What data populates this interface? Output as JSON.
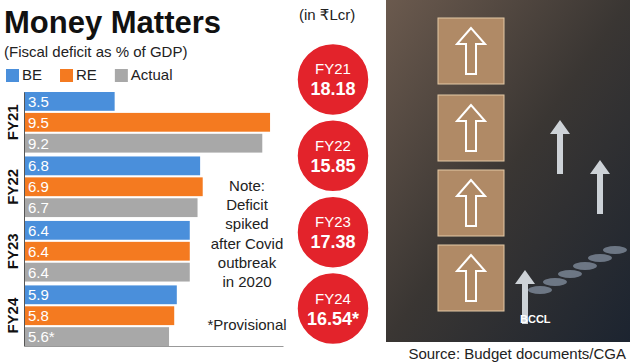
{
  "chart_data": [
    {
      "type": "bar",
      "title": "Money Matters",
      "subtitle": "(Fiscal deficit as % of GDP)",
      "orientation": "horizontal",
      "categories": [
        "FY21",
        "FY22",
        "FY23",
        "FY24"
      ],
      "series": [
        {
          "name": "BE",
          "color": "#4a8fdb",
          "values": [
            3.5,
            6.8,
            6.4,
            5.9
          ]
        },
        {
          "name": "RE",
          "color": "#f47a20",
          "values": [
            9.5,
            6.9,
            6.4,
            5.8
          ]
        },
        {
          "name": "Actual",
          "color": "#a8a8a8",
          "values": [
            9.2,
            6.7,
            6.4,
            5.6
          ],
          "value_labels": [
            "9.2",
            "6.7",
            "6.4",
            "5.6*"
          ]
        }
      ],
      "xlim": [
        0,
        10
      ],
      "xticks": [],
      "tick_labels": "y",
      "data_labels": true,
      "grid": false,
      "legend": "top-left",
      "annotations": [
        "Note:",
        "Deficit",
        "spiked",
        "after Covid",
        "outbreak",
        "in 2020",
        "*Provisional"
      ],
      "source": "Source: Budget documents/CGA"
    },
    {
      "type": "badge",
      "subtitle": "(in ₹Lcr)",
      "categories": [
        "FY21",
        "FY22",
        "FY23",
        "FY24"
      ],
      "values": [
        18.18,
        15.85,
        17.38,
        16.54
      ],
      "value_labels": [
        "18.18",
        "15.85",
        "17.38",
        "16.54*"
      ],
      "color": "#e3232b",
      "data_labels": true,
      "annotations": [
        "BCCL"
      ]
    }
  ]
}
